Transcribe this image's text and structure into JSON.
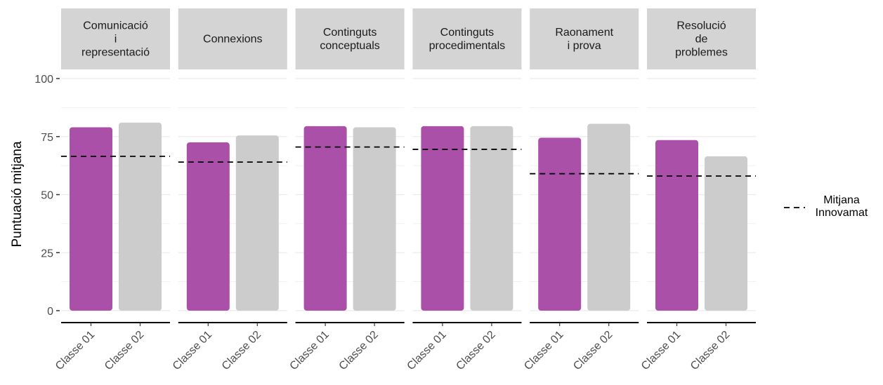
{
  "chart_data": {
    "type": "bar",
    "ylabel": "Puntuació mitjana",
    "ylim": [
      0,
      100
    ],
    "yticks": [
      0,
      25,
      50,
      75,
      100
    ],
    "categories": [
      "Classe 01",
      "Classe 02"
    ],
    "colors": {
      "Classe 01": "#AA50A8",
      "Classe 02": "#CCCCCC",
      "strip": "#D4D4D4",
      "grid": "#EBEBEB",
      "reference": "#000000"
    },
    "legend": {
      "label": "Mitjana\nInnovamat",
      "line": "dashed",
      "position": "right"
    },
    "facets": [
      {
        "title": "Comunicació\ni\nrepresentació",
        "values": [
          79,
          81
        ],
        "mitjana_innovamat": 66.5
      },
      {
        "title": "Connexions",
        "values": [
          72.5,
          75.5
        ],
        "mitjana_innovamat": 64
      },
      {
        "title": "Continguts\nconceptuals",
        "values": [
          79.5,
          79
        ],
        "mitjana_innovamat": 70.5
      },
      {
        "title": "Continguts\nprocedimentals",
        "values": [
          79.5,
          79.5
        ],
        "mitjana_innovamat": 69.5
      },
      {
        "title": "Raonament\ni prova",
        "values": [
          74.5,
          80.5
        ],
        "mitjana_innovamat": 59
      },
      {
        "title": "Resolució\nde\nproblemes",
        "values": [
          73.5,
          66.5
        ],
        "mitjana_innovamat": 58
      }
    ]
  }
}
